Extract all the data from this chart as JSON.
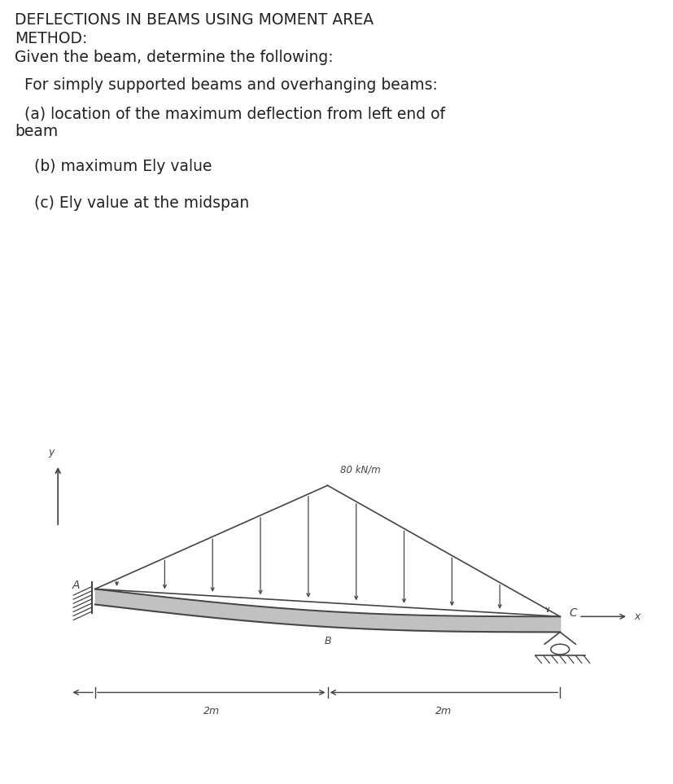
{
  "title_line1": "DEFLECTIONS IN BEAMS USING MOMENT AREA",
  "title_line2": "METHOD:",
  "line3": "Given the beam, determine the following:",
  "line4": "  For simply supported beams and overhanging beams:",
  "line5a": "  (a) location of the maximum deflection from left end of",
  "line5b": "beam",
  "line6": "    (b) maximum Ely value",
  "line7": "    (c) Ely value at the midspan",
  "load_label": "80 kN/m",
  "dim1": "2m",
  "dim2": "2m",
  "label_A": "A",
  "label_B": "B",
  "label_C": "C",
  "label_x": "x",
  "label_y": "y",
  "bg_color": "#d8d8d8",
  "beam_color": "#444444",
  "page_bg": "#ffffff",
  "font_size": 13.5
}
